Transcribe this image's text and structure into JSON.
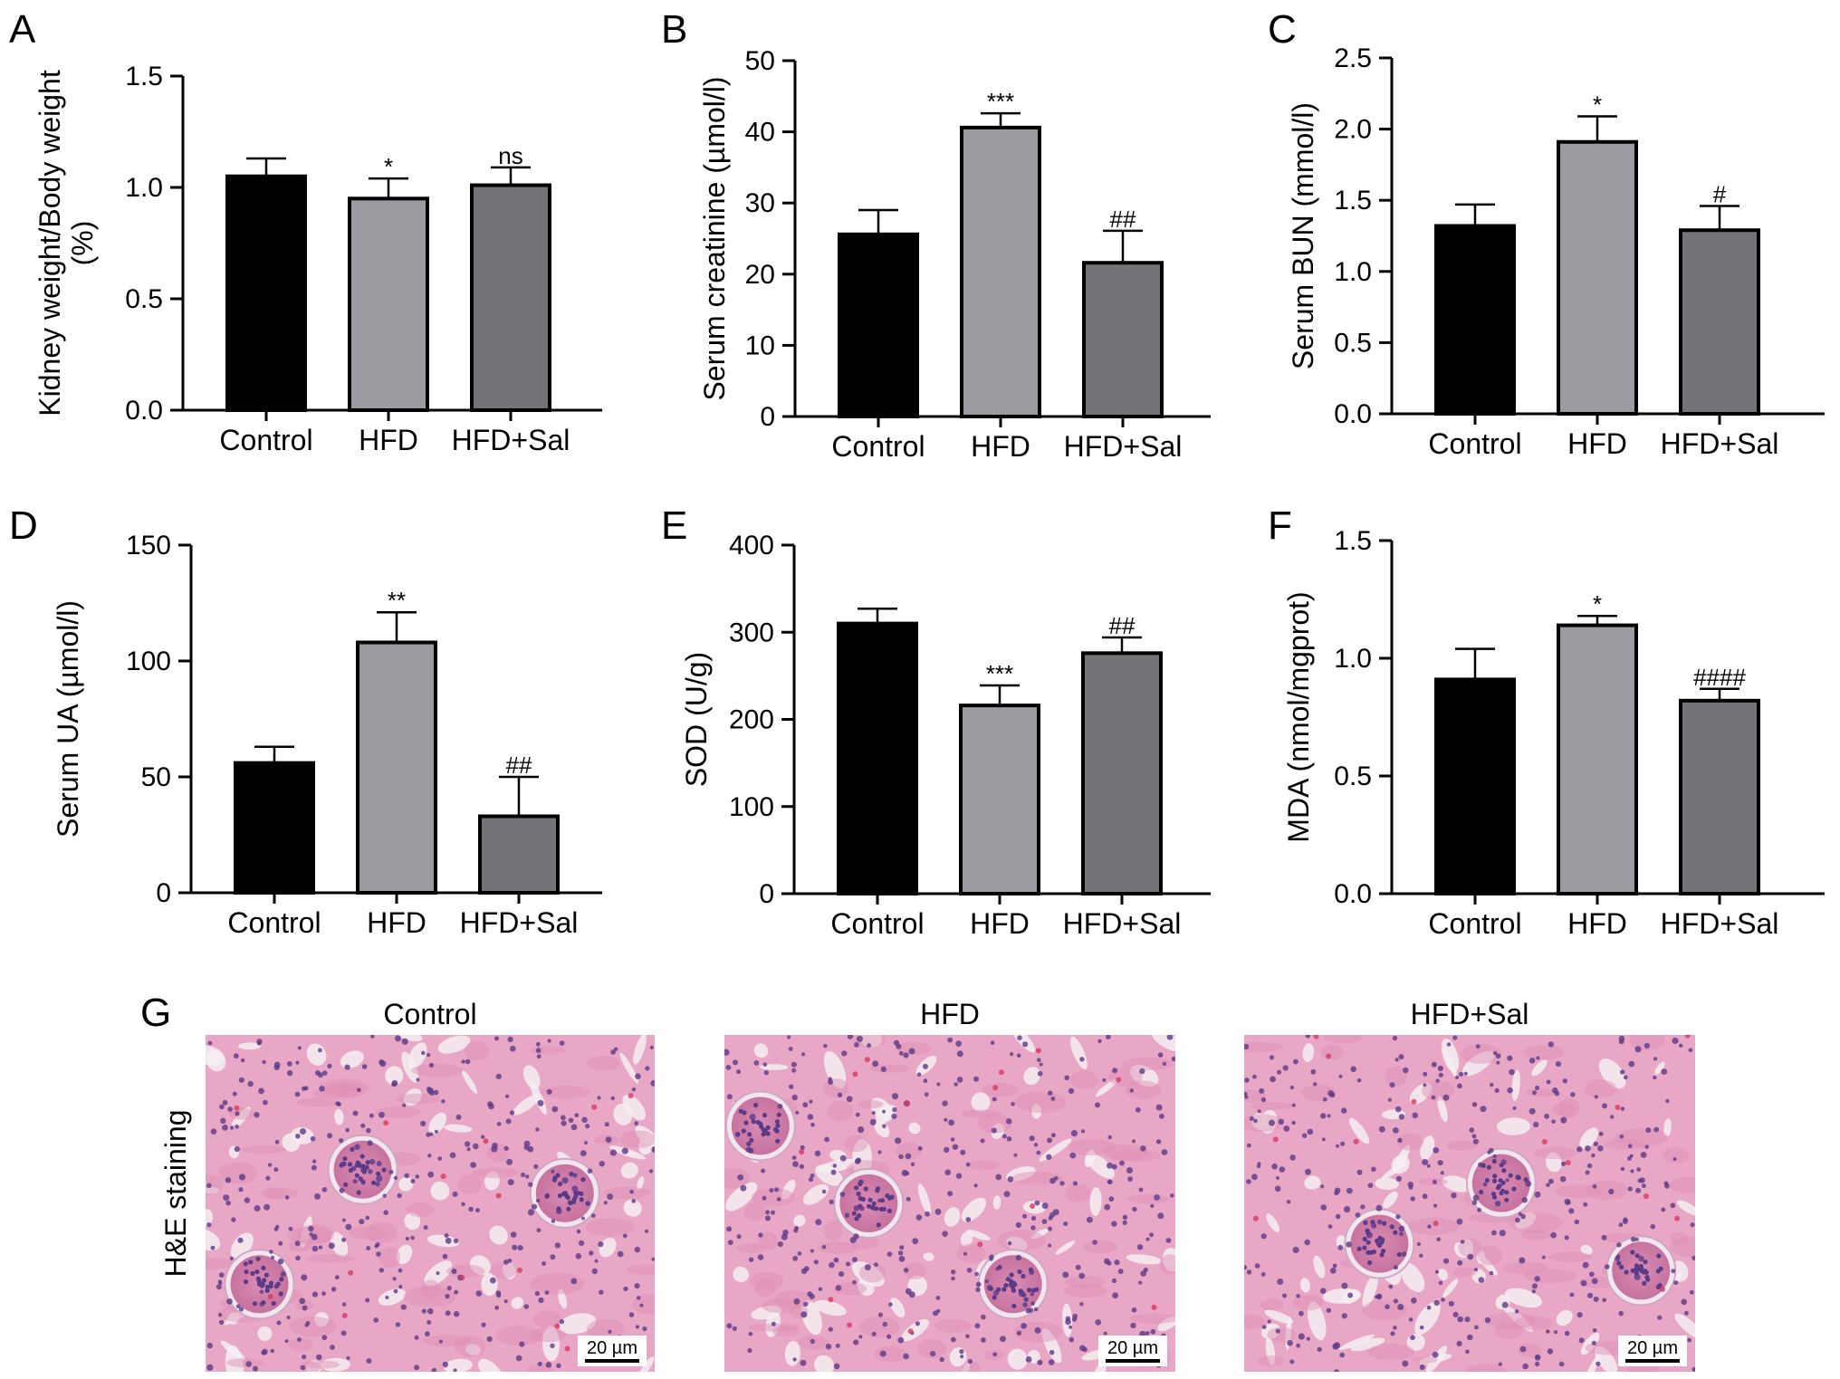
{
  "colors": {
    "control": "#000000",
    "hfd": "#9a9ca2",
    "hfd_sal": "#737478",
    "tissue_base": "#e9a7c6",
    "nuclei": "#5b3a86",
    "lumen": "#f4eef2"
  },
  "chart_data": [
    {
      "id": "A",
      "type": "bar",
      "letter": "A",
      "ylabel_lines": [
        "Kidney weight/Body weight",
        "(%)"
      ],
      "categories": [
        "Control",
        "HFD",
        "HFD+Sal"
      ],
      "values": [
        1.05,
        0.95,
        1.01
      ],
      "errors": [
        0.08,
        0.09,
        0.08
      ],
      "significance": [
        "",
        "*",
        "ns"
      ],
      "ylim": [
        0,
        1.5
      ],
      "yticks": [
        0.0,
        0.5,
        1.0,
        1.5
      ],
      "ytick_labels": [
        "0.0",
        "0.5",
        "1.0",
        "1.5"
      ]
    },
    {
      "id": "B",
      "type": "bar",
      "letter": "B",
      "ylabel_lines": [
        "Serum creatinine (µmol/l)"
      ],
      "categories": [
        "Control",
        "HFD",
        "HFD+Sal"
      ],
      "values": [
        25.6,
        40.6,
        21.6
      ],
      "errors": [
        3.4,
        2.0,
        4.5
      ],
      "significance": [
        "",
        "***",
        "##"
      ],
      "ylim": [
        0,
        50
      ],
      "yticks": [
        0,
        10,
        20,
        30,
        40,
        50
      ],
      "ytick_labels": [
        "0",
        "10",
        "20",
        "30",
        "40",
        "50"
      ]
    },
    {
      "id": "C",
      "type": "bar",
      "letter": "C",
      "ylabel_lines": [
        "Serum BUN (mmol/l)"
      ],
      "categories": [
        "Control",
        "HFD",
        "HFD+Sal"
      ],
      "values": [
        1.32,
        1.91,
        1.29
      ],
      "errors": [
        0.15,
        0.18,
        0.17
      ],
      "significance": [
        "",
        "*",
        "#"
      ],
      "ylim": [
        0,
        2.5
      ],
      "yticks": [
        0.0,
        0.5,
        1.0,
        1.5,
        2.0,
        2.5
      ],
      "ytick_labels": [
        "0.0",
        "0.5",
        "1.0",
        "1.5",
        "2.0",
        "2.5"
      ]
    },
    {
      "id": "D",
      "type": "bar",
      "letter": "D",
      "ylabel_lines": [
        "Serum UA (µmol/l)"
      ],
      "categories": [
        "Control",
        "HFD",
        "HFD+Sal"
      ],
      "values": [
        56,
        108,
        33
      ],
      "errors": [
        7,
        13,
        17
      ],
      "significance": [
        "",
        "**",
        "##"
      ],
      "ylim": [
        0,
        150
      ],
      "yticks": [
        0,
        50,
        100,
        150
      ],
      "ytick_labels": [
        "0",
        "50",
        "100",
        "150"
      ]
    },
    {
      "id": "E",
      "type": "bar",
      "letter": "E",
      "ylabel_lines": [
        "SOD (U/g)"
      ],
      "categories": [
        "Control",
        "HFD",
        "HFD+Sal"
      ],
      "values": [
        310,
        216,
        276
      ],
      "errors": [
        17,
        23,
        18
      ],
      "significance": [
        "",
        "***",
        "##"
      ],
      "ylim": [
        0,
        400
      ],
      "yticks": [
        0,
        100,
        200,
        300,
        400
      ],
      "ytick_labels": [
        "0",
        "100",
        "200",
        "300",
        "400"
      ]
    },
    {
      "id": "F",
      "type": "bar",
      "letter": "F",
      "ylabel_lines": [
        "MDA (nmol/mgprot)"
      ],
      "categories": [
        "Control",
        "HFD",
        "HFD+Sal"
      ],
      "values": [
        0.91,
        1.14,
        0.82
      ],
      "errors": [
        0.13,
        0.04,
        0.05
      ],
      "significance": [
        "",
        "*",
        "####"
      ],
      "ylim": [
        0,
        1.5
      ],
      "yticks": [
        0.0,
        0.5,
        1.0,
        1.5
      ],
      "ytick_labels": [
        "0.0",
        "0.5",
        "1.0",
        "1.5"
      ]
    }
  ],
  "histology": {
    "letter": "G",
    "row_label": "H&E staining",
    "scale_bar": "20 µm",
    "panels": [
      {
        "title": "Control"
      },
      {
        "title": "HFD"
      },
      {
        "title": "HFD+Sal"
      }
    ]
  }
}
